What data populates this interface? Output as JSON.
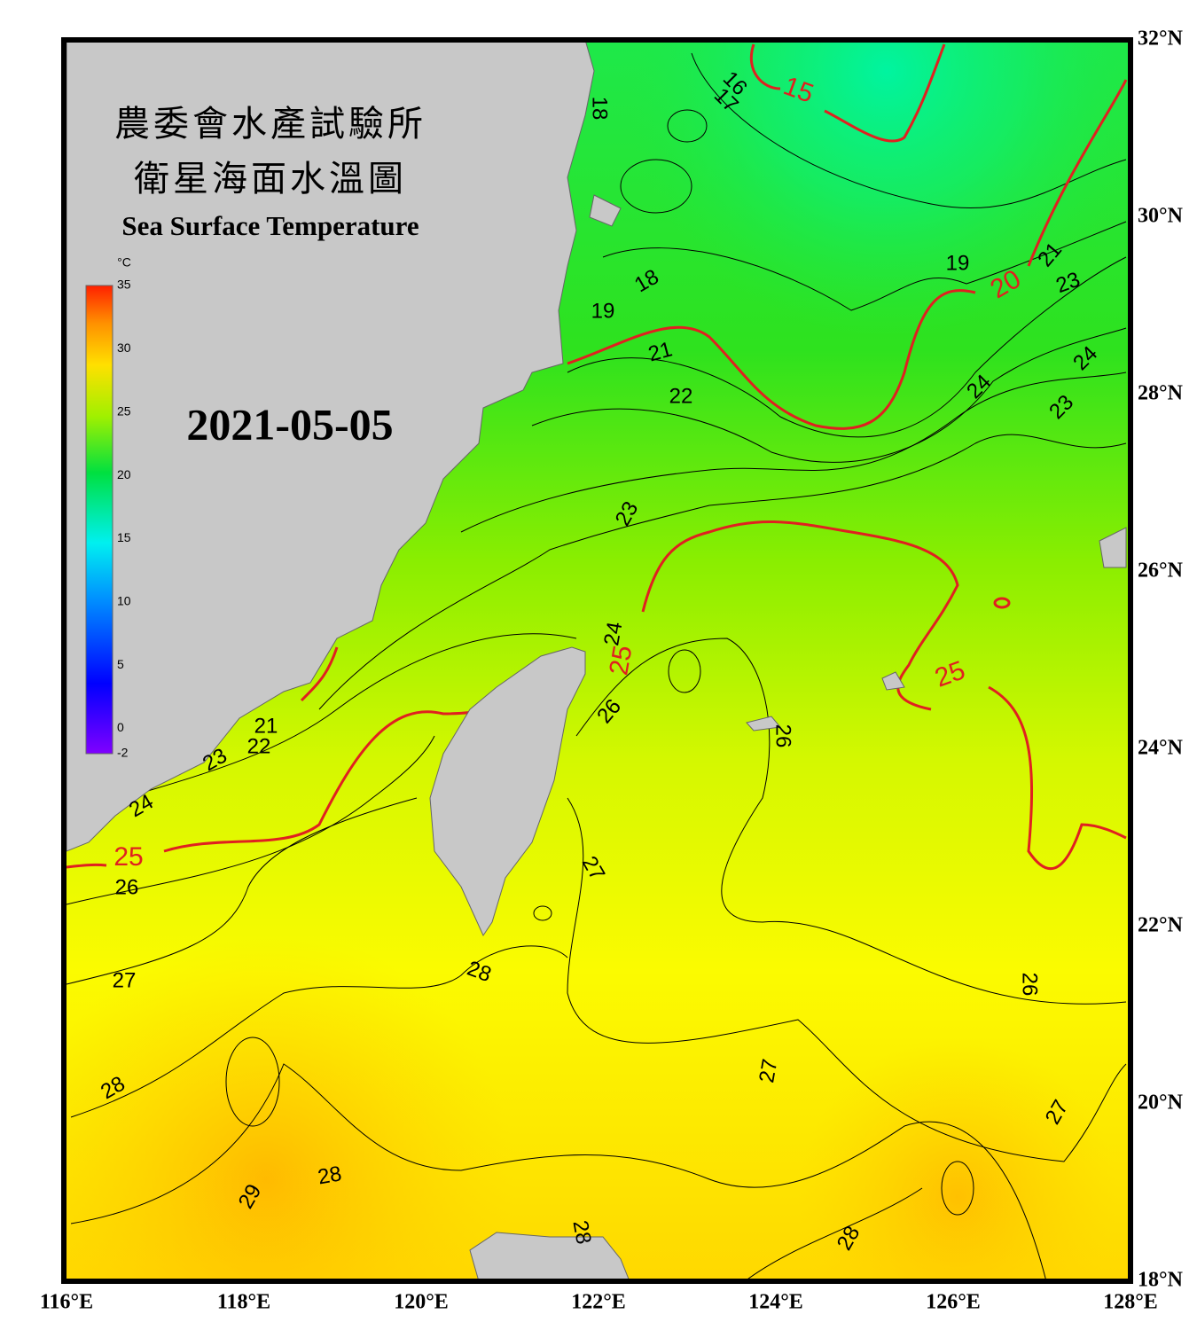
{
  "header": {
    "title_zh_1": "農委會水產試驗所",
    "title_zh_2": "衛星海面水溫圖",
    "title_en": "Sea Surface Temperature",
    "date": "2021-05-05"
  },
  "colorbar": {
    "unit": "°C",
    "lim": [
      -2,
      35
    ],
    "ticks": [
      35,
      30,
      25,
      20,
      15,
      10,
      5,
      0,
      -2
    ]
  },
  "map": {
    "lonlim": [
      116,
      128
    ],
    "latlim": [
      18,
      32
    ],
    "lon_ticks": [
      {
        "value": 116,
        "label": "116°E"
      },
      {
        "value": 118,
        "label": "118°E"
      },
      {
        "value": 120,
        "label": "120°E"
      },
      {
        "value": 122,
        "label": "122°E"
      },
      {
        "value": 124,
        "label": "124°E"
      },
      {
        "value": 126,
        "label": "126°E"
      },
      {
        "value": 128,
        "label": "128°E"
      }
    ],
    "lat_ticks": [
      {
        "value": 32,
        "label": "32°N"
      },
      {
        "value": 30,
        "label": "30°N"
      },
      {
        "value": 28,
        "label": "28°N"
      },
      {
        "value": 26,
        "label": "26°N"
      },
      {
        "value": 24,
        "label": "24°N"
      },
      {
        "value": 22,
        "label": "22°N"
      },
      {
        "value": 20,
        "label": "20°N"
      },
      {
        "value": 18,
        "label": "18°N"
      }
    ],
    "contour_labels": [
      18,
      16,
      17,
      15,
      19,
      20,
      21,
      23,
      18,
      19,
      21,
      22,
      24,
      24,
      23,
      23,
      24,
      25,
      25,
      26,
      26,
      21,
      22,
      23,
      24,
      25,
      26,
      27,
      27,
      28,
      26,
      28,
      27,
      27,
      28,
      29,
      28,
      28
    ]
  }
}
